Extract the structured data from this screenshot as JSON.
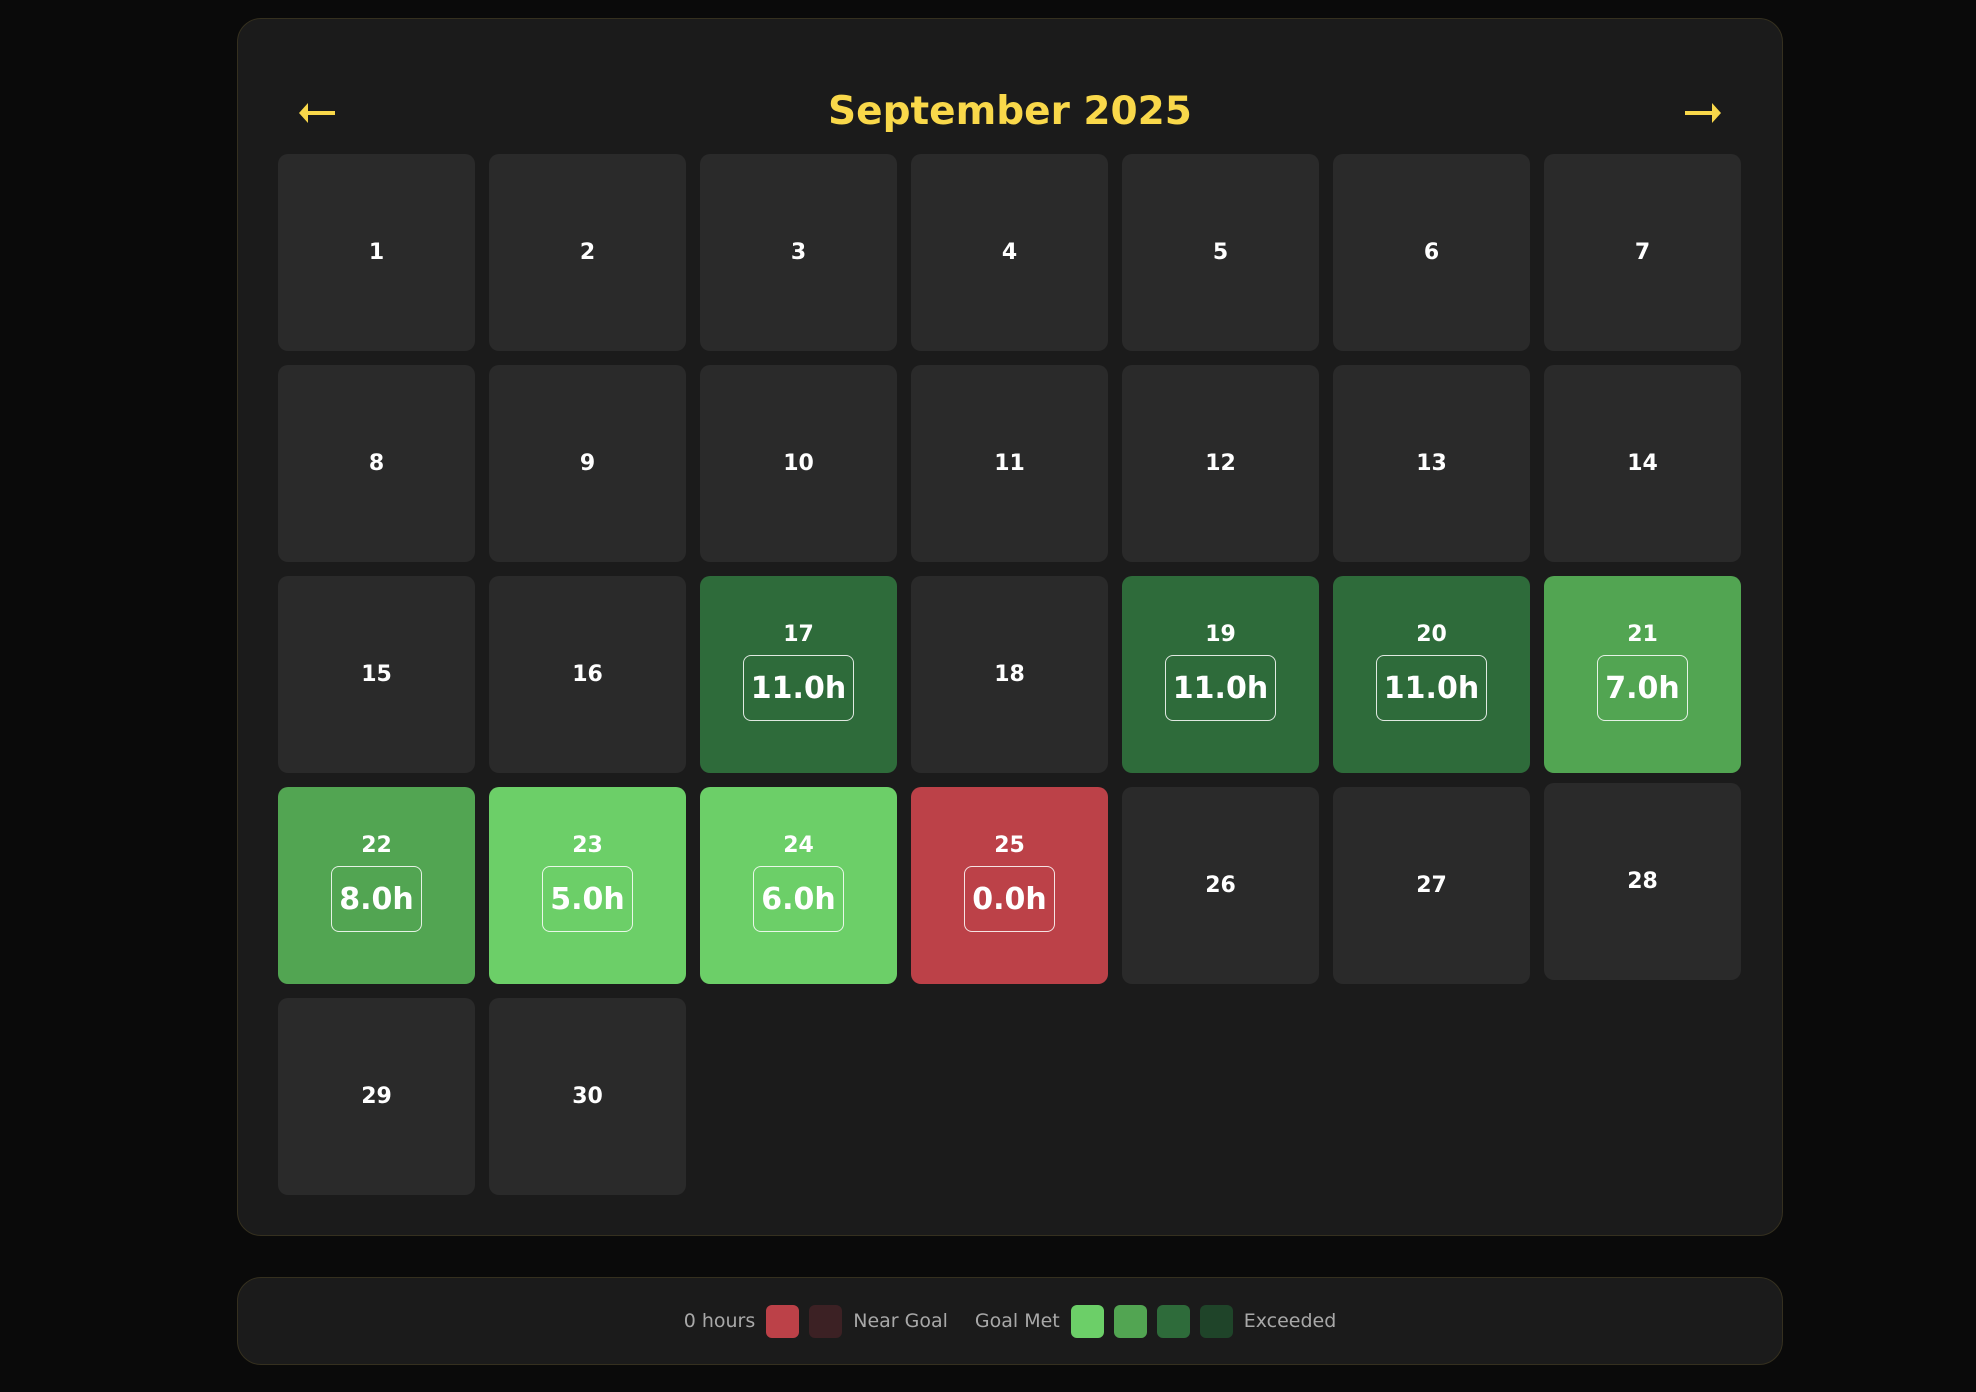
{
  "header": {
    "title": "September 2025",
    "prev_icon": "arrow-left-icon",
    "next_icon": "arrow-right-icon",
    "accent_color": "#f9d84a"
  },
  "colors": {
    "empty": "#2a2a2a",
    "zero": "#bc4148",
    "near_goal": "#3c2124",
    "goal_met_1": "#6ccf68",
    "goal_met_2": "#52a552",
    "goal_met_3": "#2e6b3a",
    "exceeded": "#1f4429"
  },
  "days": [
    {
      "day": "1"
    },
    {
      "day": "2"
    },
    {
      "day": "3"
    },
    {
      "day": "4"
    },
    {
      "day": "5"
    },
    {
      "day": "6"
    },
    {
      "day": "7"
    },
    {
      "day": "8"
    },
    {
      "day": "9"
    },
    {
      "day": "10"
    },
    {
      "day": "11"
    },
    {
      "day": "12"
    },
    {
      "day": "13"
    },
    {
      "day": "14"
    },
    {
      "day": "15"
    },
    {
      "day": "16"
    },
    {
      "day": "17",
      "hours": "11.0h",
      "level": "goal_met_3"
    },
    {
      "day": "18"
    },
    {
      "day": "19",
      "hours": "11.0h",
      "level": "goal_met_3"
    },
    {
      "day": "20",
      "hours": "11.0h",
      "level": "goal_met_3"
    },
    {
      "day": "21",
      "hours": "7.0h",
      "level": "goal_met_2"
    },
    {
      "day": "22",
      "hours": "8.0h",
      "level": "goal_met_2"
    },
    {
      "day": "23",
      "hours": "5.0h",
      "level": "goal_met_1"
    },
    {
      "day": "24",
      "hours": "6.0h",
      "level": "goal_met_1"
    },
    {
      "day": "25",
      "hours": "0.0h",
      "level": "zero"
    },
    {
      "day": "26"
    },
    {
      "day": "27"
    },
    {
      "day": "28",
      "hover": true
    },
    {
      "day": "29"
    },
    {
      "day": "30"
    }
  ],
  "legend": {
    "zero_label": "0 hours",
    "near_goal_label": "Near Goal",
    "goal_met_label": "Goal Met",
    "exceeded_label": "Exceeded"
  }
}
